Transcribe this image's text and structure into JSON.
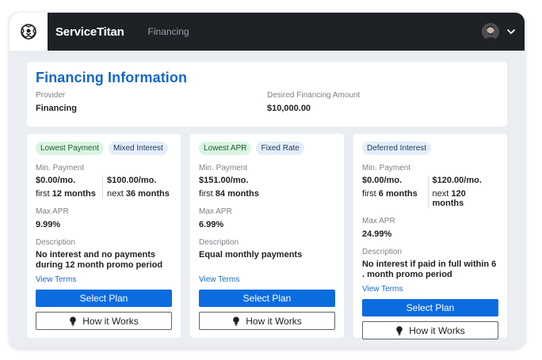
{
  "header": {
    "brand": "ServiceTitan",
    "nav_link": "Financing",
    "logo_icon": "titan-logo-icon",
    "user_icon": "user-avatar-icon"
  },
  "info": {
    "title": "Financing Information",
    "provider_label": "Provider",
    "provider_value": "Financing",
    "amount_label": "Desired Financing Amount",
    "amount_value": "$10,000.00"
  },
  "plans": [
    {
      "tags": [
        {
          "text": "Lowest Payment",
          "color": "green"
        },
        {
          "text": "Mixed Interest",
          "color": "blue"
        }
      ],
      "min_payment_label": "Min. Payment",
      "pay1_amount": "$0.00/mo.",
      "pay1_term_prefix": "first",
      "pay1_term_value": "12 months",
      "pay2_amount": "$100.00/mo.",
      "pay2_term_prefix": "next",
      "pay2_term_value": "36 months",
      "apr_label": "Max APR",
      "apr_value": "9.99%",
      "desc_label": "Description",
      "desc_value": "No interest and no payments during 12 month promo period",
      "terms_link": "View Terms",
      "select_label": "Select Plan",
      "how_label": "How it Works"
    },
    {
      "tags": [
        {
          "text": "Lowest APR",
          "color": "green"
        },
        {
          "text": "Fixed Rate",
          "color": "blue"
        }
      ],
      "min_payment_label": "Min. Payment",
      "pay1_amount": "$151.00/mo.",
      "pay1_term_prefix": "first",
      "pay1_term_value": "84 months",
      "pay2_amount": "",
      "pay2_term_prefix": "",
      "pay2_term_value": "",
      "apr_label": "Max APR",
      "apr_value": "6.99%",
      "desc_label": "Description",
      "desc_value": "Equal monthly payments",
      "terms_link": "View Terms",
      "select_label": "Select Plan",
      "how_label": "How it Works"
    },
    {
      "tags": [
        {
          "text": "Deferred Interest",
          "color": "blue"
        }
      ],
      "min_payment_label": "Min. Payment",
      "pay1_amount": "$0.00/mo.",
      "pay1_term_prefix": "first",
      "pay1_term_value": "6 months",
      "pay2_amount": "$120.00/mo.",
      "pay2_term_prefix": "next",
      "pay2_term_value": "120 months",
      "apr_label": "Max APR",
      "apr_value": "24.99%",
      "desc_label": "Description",
      "desc_value": "No interest if paid in full within 6 . month promo period",
      "terms_link": "View Terms",
      "select_label": "Select Plan",
      "how_label": "How it Works"
    }
  ],
  "colors": {
    "accent": "#0b6ce0",
    "title_blue": "#1766c9",
    "topbar": "#1e2125",
    "tag_green": "#daf5e1",
    "tag_blue": "#e4eefb"
  }
}
